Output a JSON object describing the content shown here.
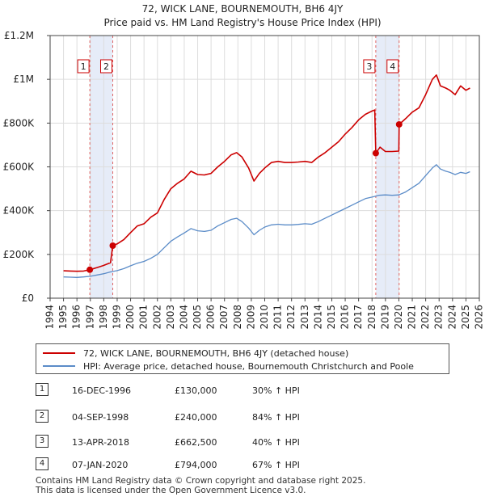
{
  "chart_data": {
    "type": "line",
    "title": "72, WICK LANE, BOURNEMOUTH, BH6 4JY",
    "subtitle": "Price paid vs. HM Land Registry's House Price Index (HPI)",
    "xlim": [
      1994,
      2026
    ],
    "ylim": [
      0,
      1200000
    ],
    "y_ticks": [
      0,
      200000,
      400000,
      600000,
      800000,
      1000000,
      1200000
    ],
    "y_tick_labels": [
      "£0",
      "£200K",
      "£400K",
      "£600K",
      "£800K",
      "£1M",
      "£1.2M"
    ],
    "x_ticks": [
      1994,
      1995,
      1996,
      1997,
      1998,
      1999,
      2000,
      2001,
      2002,
      2003,
      2004,
      2005,
      2006,
      2007,
      2008,
      2009,
      2010,
      2011,
      2012,
      2013,
      2014,
      2015,
      2016,
      2017,
      2018,
      2019,
      2020,
      2021,
      2022,
      2023,
      2024,
      2025,
      2026
    ],
    "x_tick_labels": [
      "1994",
      "1995",
      "1996",
      "1997",
      "1998",
      "1999",
      "2000",
      "2001",
      "2002",
      "2003",
      "2004",
      "2005",
      "2006",
      "2007",
      "2008",
      "2009",
      "2010",
      "2011",
      "2012",
      "2013",
      "2014",
      "2015",
      "2016",
      "2017",
      "2018",
      "2019",
      "2020",
      "2021",
      "2022",
      "2023",
      "2024",
      "2025",
      "2026"
    ],
    "grid": true,
    "shaded_ranges": [
      [
        1996.96,
        1998.67
      ],
      [
        2018.28,
        2020.02
      ]
    ],
    "series": [
      {
        "name": "72, WICK LANE, BOURNEMOUTH, BH6 4JY (detached house)",
        "color": "#cc0000",
        "points": [
          [
            1995.0,
            125000
          ],
          [
            1995.5,
            124000
          ],
          [
            1996.0,
            123000
          ],
          [
            1996.5,
            124000
          ],
          [
            1996.96,
            130000
          ],
          [
            1997.5,
            140000
          ],
          [
            1998.0,
            150000
          ],
          [
            1998.5,
            162000
          ],
          [
            1998.67,
            240000
          ],
          [
            1999.0,
            248000
          ],
          [
            1999.5,
            268000
          ],
          [
            2000.0,
            300000
          ],
          [
            2000.5,
            330000
          ],
          [
            2001.0,
            340000
          ],
          [
            2001.5,
            370000
          ],
          [
            2002.0,
            390000
          ],
          [
            2002.5,
            450000
          ],
          [
            2003.0,
            500000
          ],
          [
            2003.5,
            525000
          ],
          [
            2004.0,
            545000
          ],
          [
            2004.5,
            580000
          ],
          [
            2005.0,
            565000
          ],
          [
            2005.5,
            563000
          ],
          [
            2006.0,
            570000
          ],
          [
            2006.5,
            600000
          ],
          [
            2007.0,
            625000
          ],
          [
            2007.5,
            655000
          ],
          [
            2007.9,
            665000
          ],
          [
            2008.3,
            645000
          ],
          [
            2008.8,
            595000
          ],
          [
            2009.2,
            535000
          ],
          [
            2009.6,
            570000
          ],
          [
            2010.0,
            595000
          ],
          [
            2010.5,
            620000
          ],
          [
            2011.0,
            625000
          ],
          [
            2011.5,
            620000
          ],
          [
            2012.0,
            620000
          ],
          [
            2012.5,
            622000
          ],
          [
            2013.0,
            625000
          ],
          [
            2013.5,
            620000
          ],
          [
            2014.0,
            645000
          ],
          [
            2014.5,
            665000
          ],
          [
            2015.0,
            690000
          ],
          [
            2015.5,
            715000
          ],
          [
            2016.0,
            750000
          ],
          [
            2016.5,
            780000
          ],
          [
            2017.0,
            815000
          ],
          [
            2017.5,
            840000
          ],
          [
            2018.0,
            855000
          ],
          [
            2018.2,
            860000
          ],
          [
            2018.28,
            662500
          ],
          [
            2018.6,
            690000
          ],
          [
            2019.0,
            670000
          ],
          [
            2019.5,
            670000
          ],
          [
            2020.0,
            672000
          ],
          [
            2020.02,
            794000
          ],
          [
            2020.5,
            820000
          ],
          [
            2021.0,
            850000
          ],
          [
            2021.5,
            870000
          ],
          [
            2022.0,
            930000
          ],
          [
            2022.5,
            1000000
          ],
          [
            2022.8,
            1020000
          ],
          [
            2023.1,
            970000
          ],
          [
            2023.5,
            960000
          ],
          [
            2023.8,
            950000
          ],
          [
            2024.2,
            930000
          ],
          [
            2024.6,
            970000
          ],
          [
            2025.0,
            950000
          ],
          [
            2025.3,
            960000
          ]
        ]
      },
      {
        "name": "HPI: Average price, detached house, Bournemouth Christchurch and Poole",
        "color": "#5b8cc8",
        "points": [
          [
            1995.0,
            97000
          ],
          [
            1995.5,
            96000
          ],
          [
            1996.0,
            95000
          ],
          [
            1996.5,
            97000
          ],
          [
            1997.0,
            100000
          ],
          [
            1997.5,
            106000
          ],
          [
            1998.0,
            112000
          ],
          [
            1998.5,
            120000
          ],
          [
            1999.0,
            126000
          ],
          [
            1999.5,
            135000
          ],
          [
            2000.0,
            148000
          ],
          [
            2000.5,
            160000
          ],
          [
            2001.0,
            168000
          ],
          [
            2001.5,
            182000
          ],
          [
            2002.0,
            200000
          ],
          [
            2002.5,
            230000
          ],
          [
            2003.0,
            260000
          ],
          [
            2003.5,
            280000
          ],
          [
            2004.0,
            298000
          ],
          [
            2004.5,
            318000
          ],
          [
            2005.0,
            308000
          ],
          [
            2005.5,
            305000
          ],
          [
            2006.0,
            310000
          ],
          [
            2006.5,
            330000
          ],
          [
            2007.0,
            345000
          ],
          [
            2007.5,
            360000
          ],
          [
            2007.9,
            365000
          ],
          [
            2008.3,
            350000
          ],
          [
            2008.8,
            320000
          ],
          [
            2009.2,
            290000
          ],
          [
            2009.6,
            310000
          ],
          [
            2010.0,
            325000
          ],
          [
            2010.5,
            335000
          ],
          [
            2011.0,
            338000
          ],
          [
            2011.5,
            335000
          ],
          [
            2012.0,
            335000
          ],
          [
            2012.5,
            337000
          ],
          [
            2013.0,
            340000
          ],
          [
            2013.5,
            338000
          ],
          [
            2014.0,
            350000
          ],
          [
            2014.5,
            365000
          ],
          [
            2015.0,
            380000
          ],
          [
            2015.5,
            395000
          ],
          [
            2016.0,
            410000
          ],
          [
            2016.5,
            425000
          ],
          [
            2017.0,
            440000
          ],
          [
            2017.5,
            455000
          ],
          [
            2018.0,
            462000
          ],
          [
            2018.5,
            470000
          ],
          [
            2019.0,
            472000
          ],
          [
            2019.5,
            470000
          ],
          [
            2020.0,
            472000
          ],
          [
            2020.5,
            485000
          ],
          [
            2021.0,
            505000
          ],
          [
            2021.5,
            525000
          ],
          [
            2022.0,
            560000
          ],
          [
            2022.5,
            595000
          ],
          [
            2022.8,
            610000
          ],
          [
            2023.1,
            590000
          ],
          [
            2023.5,
            580000
          ],
          [
            2023.8,
            575000
          ],
          [
            2024.2,
            565000
          ],
          [
            2024.6,
            575000
          ],
          [
            2025.0,
            570000
          ],
          [
            2025.3,
            578000
          ]
        ]
      }
    ],
    "sales": [
      {
        "num": "1",
        "x": 1996.96,
        "price": 130000
      },
      {
        "num": "2",
        "x": 1998.67,
        "price": 240000
      },
      {
        "num": "3",
        "x": 2018.28,
        "price": 662500
      },
      {
        "num": "4",
        "x": 2020.02,
        "price": 794000
      }
    ]
  },
  "legend": {
    "property_label": "72, WICK LANE, BOURNEMOUTH, BH6 4JY (detached house)",
    "hpi_label": "HPI: Average price, detached house, Bournemouth Christchurch and Poole",
    "property_color": "#cc0000",
    "hpi_color": "#5b8cc8"
  },
  "transactions": [
    {
      "num": "1",
      "date": "16-DEC-1996",
      "price": "£130,000",
      "hpi": "30% ↑ HPI"
    },
    {
      "num": "2",
      "date": "04-SEP-1998",
      "price": "£240,000",
      "hpi": "84% ↑ HPI"
    },
    {
      "num": "3",
      "date": "13-APR-2018",
      "price": "£662,500",
      "hpi": "40% ↑ HPI"
    },
    {
      "num": "4",
      "date": "07-JAN-2020",
      "price": "£794,000",
      "hpi": "67% ↑ HPI"
    }
  ],
  "footer": {
    "line1": "Contains HM Land Registry data © Crown copyright and database right 2025.",
    "line2": "This data is licensed under the Open Government Licence v3.0."
  }
}
